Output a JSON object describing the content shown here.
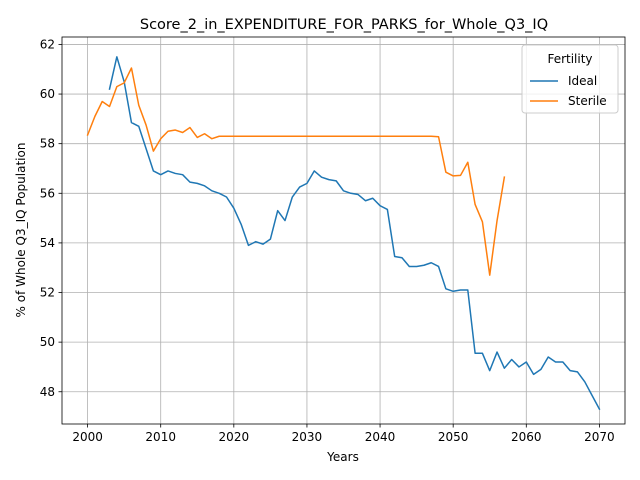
{
  "chart_data": {
    "type": "line",
    "title": "Score_2_in_EXPENDITURE_FOR_PARKS_for_Whole_Q3_IQ",
    "xlabel": "Years",
    "ylabel": "% of Whole Q3_IQ Population",
    "xlim": [
      1996.5,
      2073.5
    ],
    "ylim": [
      46.7,
      62.3
    ],
    "xticks": [
      2000,
      2010,
      2020,
      2030,
      2040,
      2050,
      2060,
      2070
    ],
    "yticks": [
      48,
      50,
      52,
      54,
      56,
      58,
      60,
      62
    ],
    "grid": true,
    "legend": {
      "title": "Fertility",
      "position": "top-right"
    },
    "series": [
      {
        "name": "Ideal",
        "color": "#1f77b4",
        "x": [
          2003,
          2004,
          2005,
          2006,
          2007,
          2008,
          2009,
          2010,
          2011,
          2012,
          2013,
          2014,
          2015,
          2016,
          2017,
          2018,
          2019,
          2020,
          2021,
          2022,
          2023,
          2024,
          2025,
          2026,
          2027,
          2028,
          2029,
          2030,
          2031,
          2032,
          2033,
          2034,
          2035,
          2036,
          2037,
          2038,
          2039,
          2040,
          2041,
          2042,
          2043,
          2044,
          2045,
          2046,
          2047,
          2048,
          2049,
          2050,
          2051,
          2052,
          2053,
          2054,
          2055,
          2056,
          2057,
          2058,
          2059,
          2060,
          2061,
          2062,
          2063,
          2064,
          2065,
          2066,
          2067,
          2068,
          2069,
          2070
        ],
        "y": [
          60.2,
          61.5,
          60.5,
          58.85,
          58.7,
          57.8,
          56.9,
          56.75,
          56.9,
          56.8,
          56.75,
          56.45,
          56.4,
          56.3,
          56.1,
          56.0,
          55.85,
          55.4,
          54.75,
          53.9,
          54.05,
          53.95,
          54.15,
          55.3,
          54.9,
          55.85,
          56.25,
          56.4,
          56.9,
          56.65,
          56.55,
          56.5,
          56.1,
          56.0,
          55.95,
          55.7,
          55.8,
          55.5,
          55.35,
          53.45,
          53.4,
          53.05,
          53.05,
          53.1,
          53.2,
          53.05,
          52.15,
          52.05,
          52.1,
          52.1,
          49.55,
          49.55,
          48.85,
          49.6,
          48.95,
          49.3,
          49.0,
          49.2,
          48.7,
          48.9,
          49.4,
          49.2,
          49.2,
          48.85,
          48.8,
          48.4,
          47.85,
          47.3
        ]
      },
      {
        "name": "Sterile",
        "color": "#ff7f0e",
        "x": [
          2000,
          2001,
          2002,
          2003,
          2004,
          2005,
          2006,
          2007,
          2008,
          2009,
          2010,
          2011,
          2012,
          2013,
          2014,
          2015,
          2016,
          2017,
          2018,
          2019,
          2020,
          2021,
          2022,
          2023,
          2024,
          2025,
          2026,
          2027,
          2028,
          2029,
          2030,
          2031,
          2032,
          2033,
          2034,
          2035,
          2036,
          2037,
          2038,
          2039,
          2040,
          2041,
          2042,
          2043,
          2044,
          2045,
          2046,
          2047,
          2048,
          2049,
          2050,
          2051,
          2052,
          2053,
          2054,
          2055,
          2056,
          2057
        ],
        "y": [
          58.35,
          59.1,
          59.7,
          59.5,
          60.3,
          60.45,
          61.05,
          59.55,
          58.75,
          57.7,
          58.2,
          58.5,
          58.55,
          58.45,
          58.65,
          58.25,
          58.4,
          58.2,
          58.3,
          58.3,
          58.3,
          58.3,
          58.3,
          58.3,
          58.3,
          58.3,
          58.3,
          58.3,
          58.3,
          58.3,
          58.3,
          58.3,
          58.3,
          58.3,
          58.3,
          58.3,
          58.3,
          58.3,
          58.3,
          58.3,
          58.3,
          58.3,
          58.3,
          58.3,
          58.3,
          58.3,
          58.3,
          58.3,
          58.28,
          56.85,
          56.7,
          56.72,
          57.25,
          55.55,
          54.85,
          52.7,
          54.9,
          56.65
        ]
      }
    ]
  }
}
